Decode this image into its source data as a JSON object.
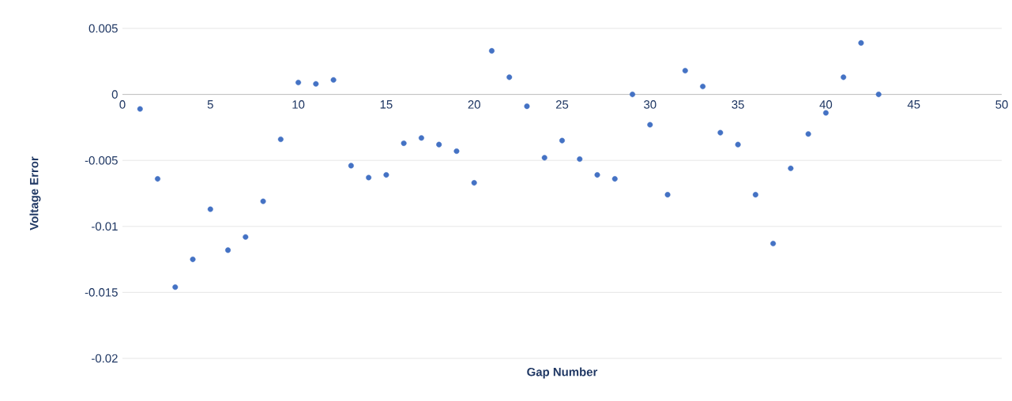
{
  "chart_data": {
    "type": "scatter",
    "xlabel": "Gap Number",
    "ylabel": "Voltage Error",
    "x": [
      1,
      2,
      3,
      4,
      5,
      6,
      7,
      8,
      9,
      10,
      11,
      12,
      13,
      14,
      15,
      16,
      17,
      18,
      19,
      20,
      21,
      22,
      23,
      24,
      25,
      26,
      27,
      28,
      29,
      30,
      31,
      32,
      33,
      34,
      35,
      36,
      37,
      38,
      39,
      40,
      41,
      42,
      43
    ],
    "values": [
      -0.0011,
      -0.0064,
      -0.0146,
      -0.0125,
      -0.0087,
      -0.0118,
      -0.0108,
      -0.0081,
      -0.0034,
      0.0009,
      0.0008,
      0.0011,
      -0.0054,
      -0.0063,
      -0.0061,
      -0.0037,
      -0.0033,
      -0.0038,
      -0.0043,
      -0.0067,
      0.0033,
      0.0013,
      -0.0009,
      -0.0048,
      -0.0035,
      -0.0049,
      -0.0061,
      -0.0064,
      0,
      -0.0023,
      -0.0076,
      0.0018,
      0.0006,
      -0.0029,
      -0.0038,
      -0.0076,
      -0.0113,
      -0.0056,
      -0.003,
      -0.0014,
      0.0013,
      0.0039,
      0
    ],
    "color": "#4472c4",
    "grid": "y",
    "xlim": [
      0,
      50
    ],
    "xticks": [
      0,
      5,
      10,
      15,
      20,
      25,
      30,
      35,
      40,
      45,
      50
    ],
    "ylim": [
      -0.02,
      0.005
    ],
    "yticks": [
      -0.02,
      -0.015,
      -0.01,
      -0.005,
      0,
      0.005
    ]
  }
}
